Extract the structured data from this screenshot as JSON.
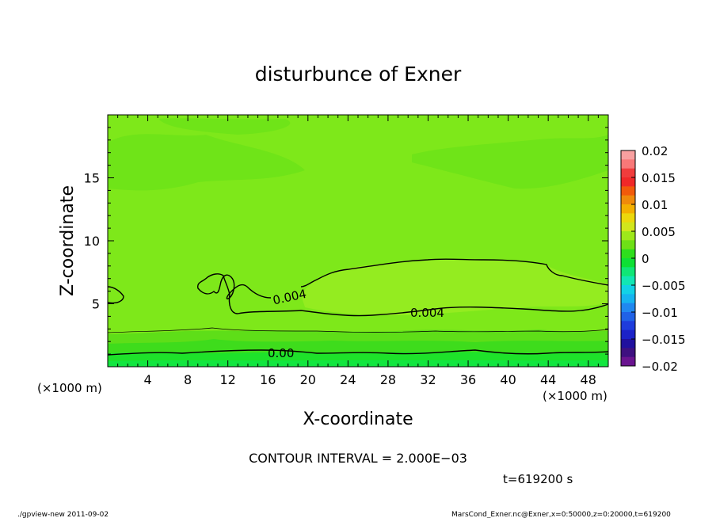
{
  "chart_data": {
    "type": "heatmap",
    "title": "disturbunce of Exner",
    "xlabel": "X-coordinate",
    "ylabel": "Z-coordinate",
    "x_unit": "(×1000 m)",
    "y_unit": "(×1000 m)",
    "xlim": [
      0,
      50
    ],
    "ylim": [
      0,
      20
    ],
    "x_ticks": [
      4,
      8,
      12,
      16,
      20,
      24,
      28,
      32,
      36,
      40,
      44,
      48
    ],
    "y_ticks": [
      5,
      10,
      15
    ],
    "colorbar": {
      "levels": [
        0.02,
        0.015,
        0.01,
        0.005,
        0,
        -0.005,
        -0.01,
        -0.015,
        -0.02
      ],
      "labels": [
        "0.02",
        "0.015",
        "0.01",
        "0.005",
        "0",
        "−0.005",
        "−0.01",
        "−0.015",
        "−0.02"
      ]
    },
    "contour_labels": [
      "0.004",
      "0.004",
      "0.00"
    ],
    "contour_interval_text": "CONTOUR INTERVAL = 2.000E−03",
    "time_text": "t=619200 s",
    "colors": {
      "field_main": "#7ee81a",
      "field_light": "#96ee22",
      "field_dark": "#5edc16",
      "band_1": "#38dc1c",
      "band_2": "#18e22a",
      "band_3": "#10e640"
    }
  },
  "footer": {
    "left": "./gpview-new   2011-09-02",
    "right": "MarsCond_Exner.nc@Exner,x=0:50000,z=0:20000,t=619200"
  }
}
